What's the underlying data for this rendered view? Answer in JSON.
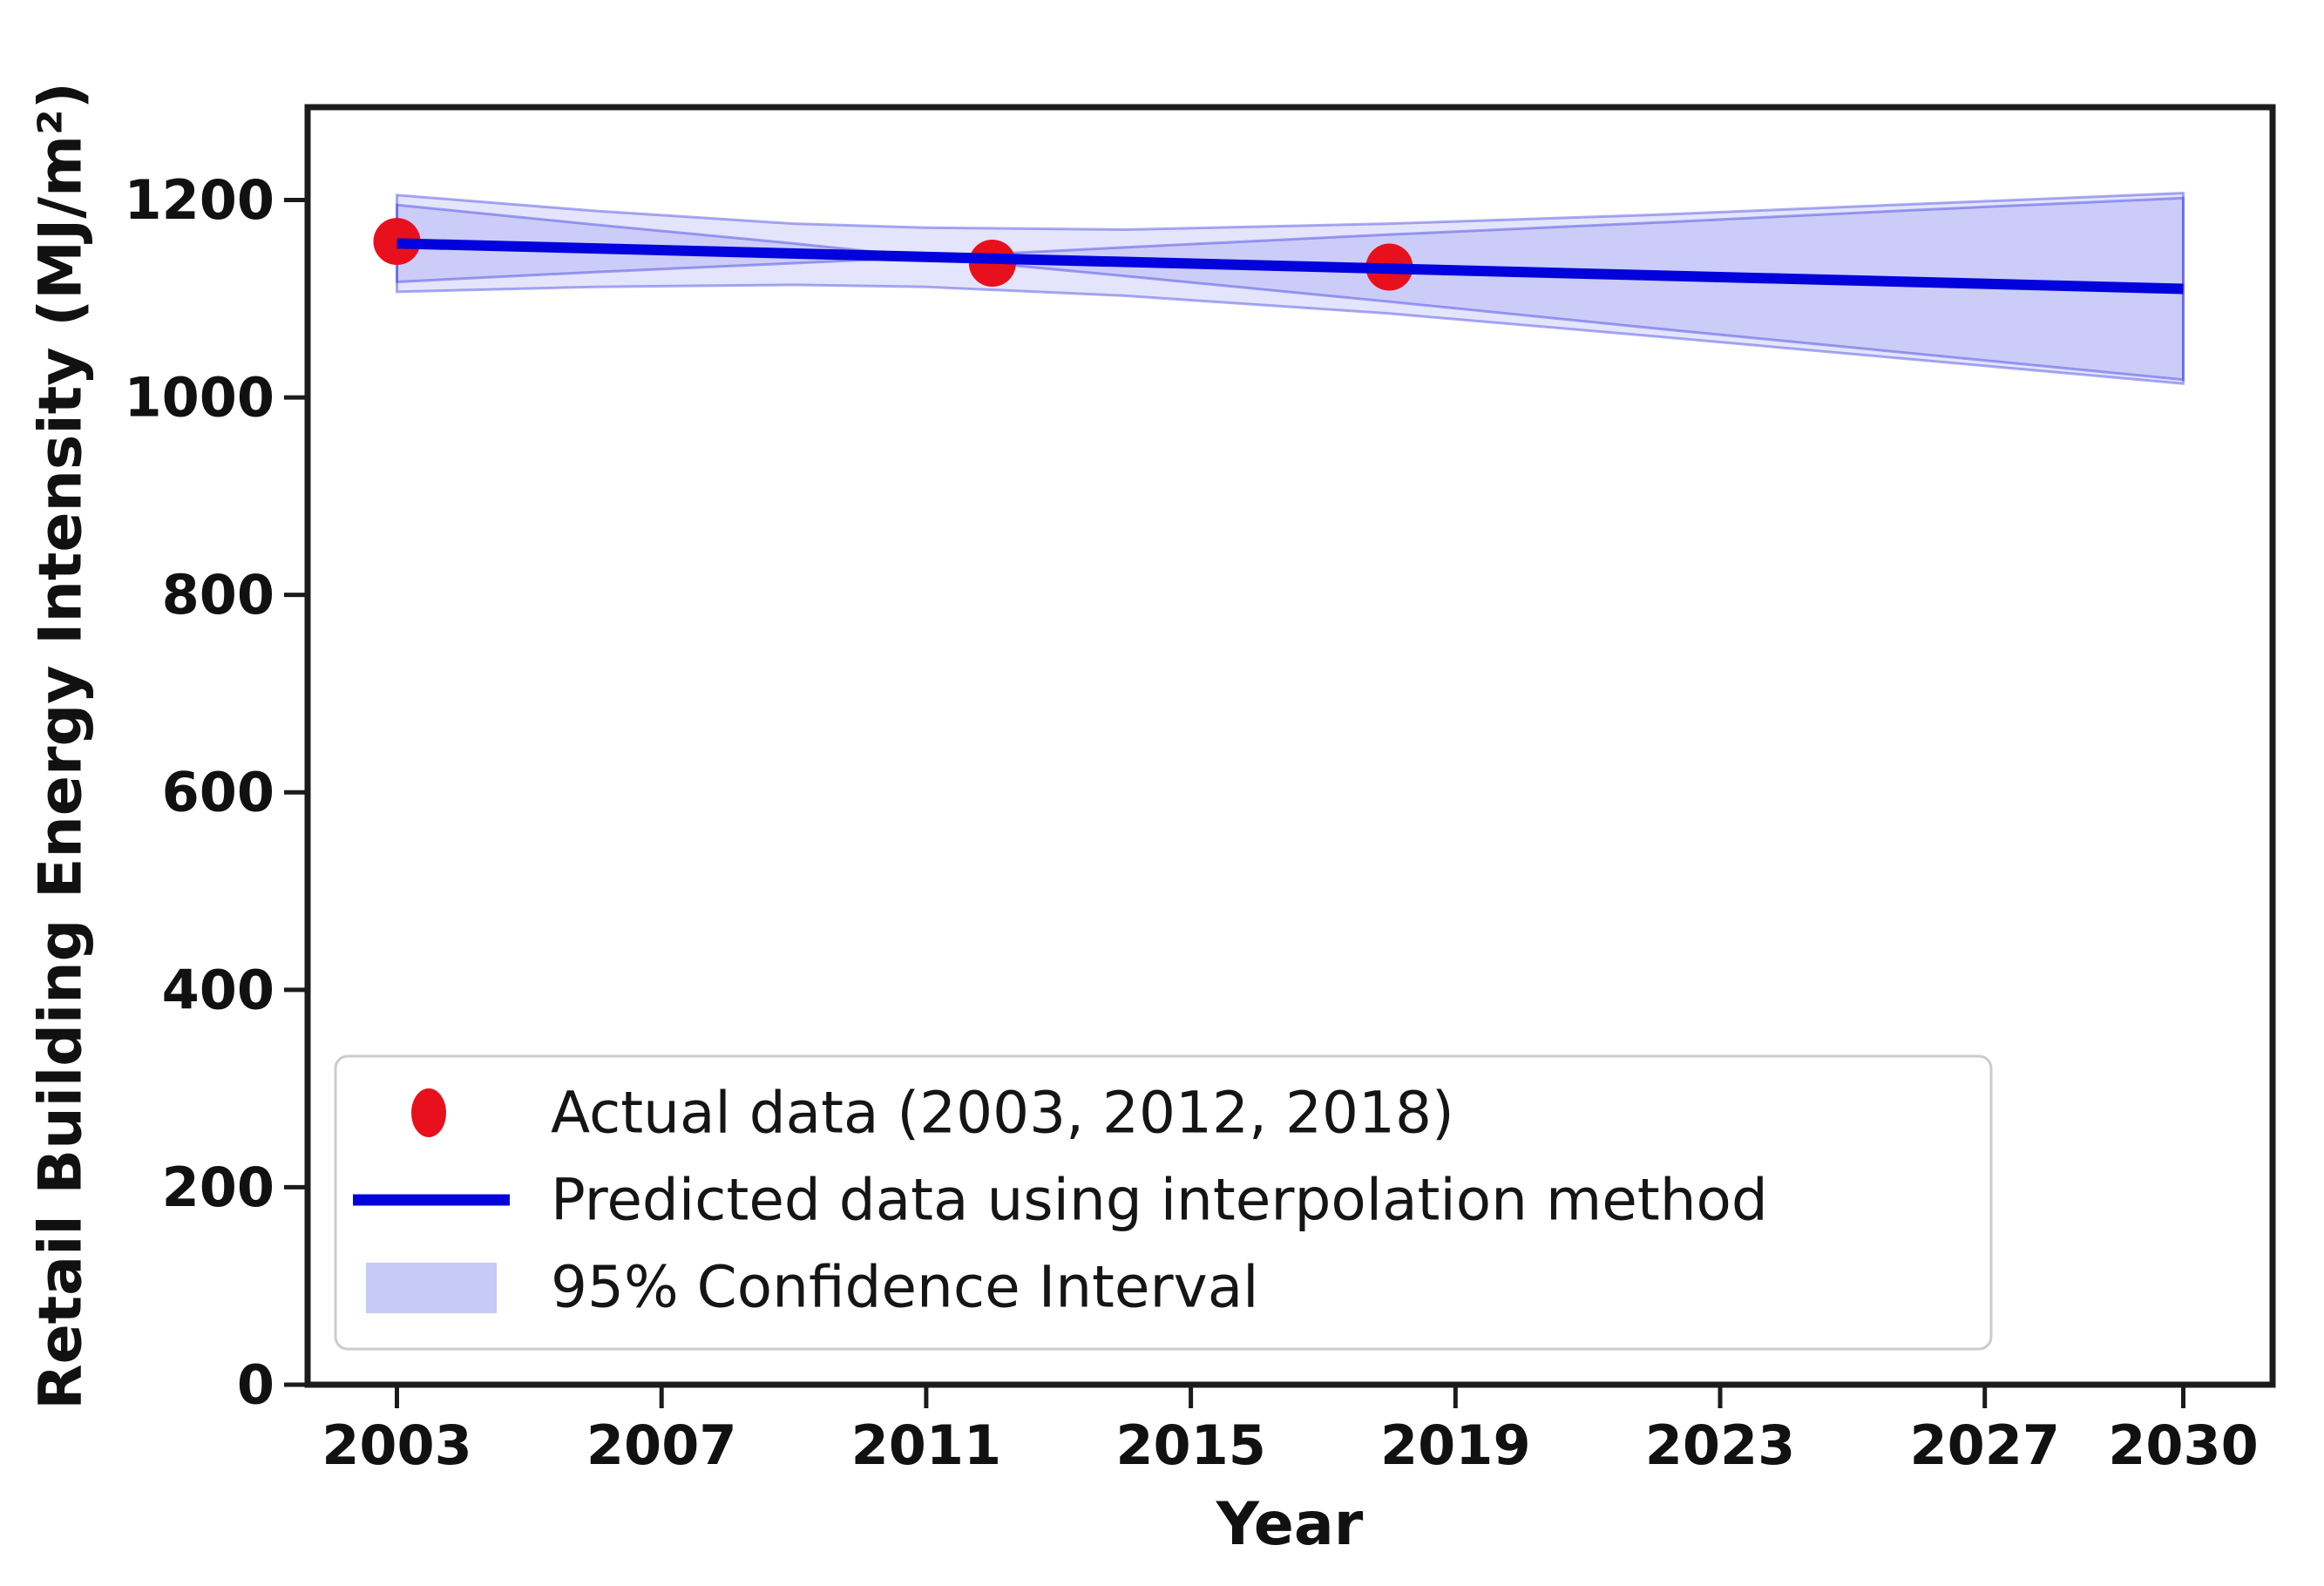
{
  "chart_data": {
    "type": "line+scatter+band",
    "title": "",
    "xlabel": "Year",
    "ylabel": "Retail Building Energy Intensity (MJ/m²)",
    "xlim": [
      2001.65,
      2031.35
    ],
    "ylim": [
      0,
      1294
    ],
    "xticks": [
      2003,
      2007,
      2011,
      2015,
      2019,
      2023,
      2027,
      2030
    ],
    "yticks": [
      0,
      200,
      400,
      600,
      800,
      1000,
      1200
    ],
    "grid": false,
    "legend_position": "lower left",
    "series": [
      {
        "name": "Actual data (2003, 2012, 2018)",
        "type": "scatter",
        "x": [
          2003,
          2012,
          2018
        ],
        "y": [
          1158,
          1136,
          1132
        ]
      },
      {
        "name": "Predicted data using interpolation method",
        "type": "line",
        "x": [
          2003,
          2030
        ],
        "y": [
          1156,
          1110
        ]
      },
      {
        "name": "95% Confidence Interval",
        "type": "band",
        "x": [
          2003,
          2006,
          2009,
          2011,
          2014,
          2018,
          2022,
          2026,
          2030
        ],
        "upper": [
          1205,
          1189,
          1176,
          1172,
          1170,
          1176,
          1185,
          1196,
          1207
        ],
        "lower": [
          1107,
          1112,
          1114,
          1112,
          1103,
          1085,
          1062,
          1038,
          1014
        ],
        "inner_upper": [
          1195,
          1175,
          1156,
          1142,
          1152,
          1165,
          1177,
          1190,
          1202
        ],
        "inner_lower": [
          1117,
          1127,
          1136,
          1142,
          1123,
          1097,
          1070,
          1044,
          1018
        ]
      }
    ],
    "colors": {
      "actual": "#e8101d",
      "predicted": "#0202dd",
      "band_fill": "rgba(45,45,235,0.13)",
      "band_edge": "rgba(45,45,225,0.40)",
      "legend_patch_fill": "#c7c9f7",
      "legend_patch_edge": "#aaaef2",
      "frame": "#1b1b1b",
      "text": "#111111"
    }
  }
}
